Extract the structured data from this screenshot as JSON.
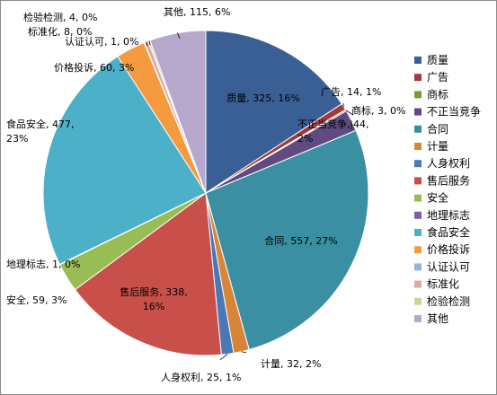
{
  "chart_data": {
    "type": "pie",
    "title": "",
    "legend_position": "right",
    "slices": [
      {
        "name": "质量",
        "value": 325,
        "pct": "16%",
        "color": "#3a5f95",
        "label": [
          "质量, 325, 16%"
        ]
      },
      {
        "name": "广告",
        "value": 14,
        "pct": "1%",
        "color": "#a23a3a",
        "label": [
          "广告, 14, 1%"
        ]
      },
      {
        "name": "商标",
        "value": 3,
        "pct": "0%",
        "color": "#7f9a3c",
        "label": [
          "商标, 3, 0%"
        ]
      },
      {
        "name": "不正当竞争",
        "value": 44,
        "pct": "2%",
        "color": "#5f4a82",
        "label": [
          "不正当竞争, 44,",
          "2%"
        ]
      },
      {
        "name": "合同",
        "value": 557,
        "pct": "27%",
        "color": "#3b8fa3",
        "label": [
          "合同, 557, 27%"
        ]
      },
      {
        "name": "计量",
        "value": 32,
        "pct": "2%",
        "color": "#d98539",
        "label": [
          "计量, 32, 2%"
        ]
      },
      {
        "name": "人身权利",
        "value": 25,
        "pct": "1%",
        "color": "#4a78b5",
        "label": [
          "人身权利, 25, 1%"
        ]
      },
      {
        "name": "售后服务",
        "value": 338,
        "pct": "16%",
        "color": "#c9504a",
        "label": [
          "售后服务, 338,",
          "16%"
        ]
      },
      {
        "name": "安全",
        "value": 59,
        "pct": "3%",
        "color": "#98bd55",
        "label": [
          "安全, 59, 3%"
        ]
      },
      {
        "name": "地理标志",
        "value": 1,
        "pct": "0%",
        "color": "#7d5fa3",
        "label": [
          "地理标志, 1, 0%"
        ]
      },
      {
        "name": "食品安全",
        "value": 477,
        "pct": "23%",
        "color": "#4bb0c8",
        "label": [
          "食品安全, 477,",
          "23%"
        ]
      },
      {
        "name": "价格投诉",
        "value": 60,
        "pct": "3%",
        "color": "#f59a3e",
        "label": [
          "价格投诉, 60, 3%"
        ]
      },
      {
        "name": "认证认可",
        "value": 1,
        "pct": "0%",
        "color": "#93b4dd",
        "label": [
          "认证认可, 1, 0%"
        ]
      },
      {
        "name": "标准化",
        "value": 8,
        "pct": "0%",
        "color": "#e0a8a4",
        "label": [
          "标准化, 8, 0%"
        ]
      },
      {
        "name": "检验检测",
        "value": 4,
        "pct": "0%",
        "color": "#c6d8a0",
        "label": [
          "检验检测, 4, 0%"
        ]
      },
      {
        "name": "其他",
        "value": 115,
        "pct": "6%",
        "color": "#b6a8cc",
        "label": [
          "其他, 115, 6%"
        ]
      }
    ]
  }
}
